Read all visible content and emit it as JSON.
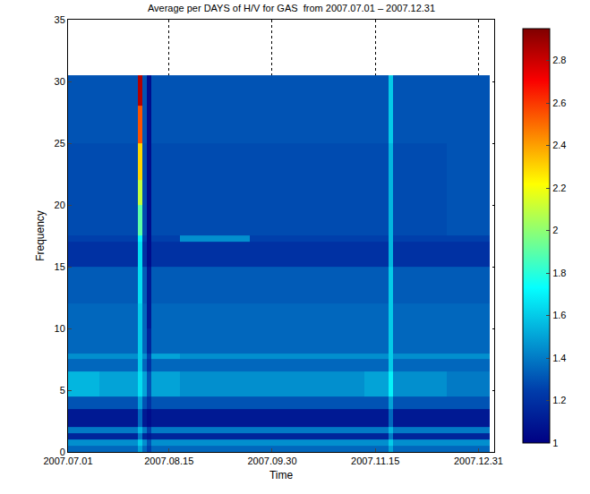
{
  "chart_data": {
    "type": "heatmap",
    "title": "Average per DAYS of H/V for GAS  from 2007.07.01 – 2007.12.31",
    "xlabel": "Time",
    "ylabel": "Frequency",
    "color": "Jet",
    "grid": true,
    "xlim": [
      "2007-07-01",
      "2008-01-07"
    ],
    "xticks": [
      {
        "value": "2007-07-01",
        "label": "2007.07.01"
      },
      {
        "value": "2007-08-15",
        "label": "2007.08.15"
      },
      {
        "value": "2007-09-30",
        "label": "2007.09.30"
      },
      {
        "value": "2007-11-15",
        "label": "2007.11.15"
      },
      {
        "value": "2007-12-31",
        "label": "2007.12.31"
      }
    ],
    "ylim": [
      0,
      35
    ],
    "yticks": [
      0,
      5,
      10,
      15,
      20,
      25,
      30,
      35
    ],
    "colorbar_range": [
      1,
      2.95
    ],
    "colorbar_ticks": [
      1,
      1.2,
      1.4,
      1.6,
      1.8,
      2,
      2.2,
      2.4,
      2.6,
      2.8
    ],
    "x_edges": [
      "2007-07-01",
      "2007-07-15",
      "2007-08-01",
      "2007-08-03",
      "2007-08-05",
      "2007-08-07",
      "2007-08-20",
      "2007-09-20",
      "2007-10-15",
      "2007-11-10",
      "2007-11-21",
      "2007-11-23",
      "2007-12-17",
      "2008-01-05"
    ],
    "y_edges": [
      0,
      0.5,
      1,
      1.5,
      2,
      3.5,
      4.5,
      6.5,
      7.5,
      8,
      10,
      12,
      15,
      17,
      17.5,
      20,
      22,
      25,
      28,
      30.5
    ],
    "z": [
      [
        1.35,
        1.35,
        1.5,
        1.35,
        1.25,
        1.35,
        1.35,
        1.35,
        1.35,
        1.35,
        1.5,
        1.35,
        1.35
      ],
      [
        1.45,
        1.45,
        1.6,
        1.45,
        1.3,
        1.45,
        1.45,
        1.45,
        1.45,
        1.45,
        1.6,
        1.45,
        1.45
      ],
      [
        1.15,
        1.15,
        1.4,
        1.15,
        1.1,
        1.15,
        1.15,
        1.15,
        1.15,
        1.15,
        1.4,
        1.15,
        1.15
      ],
      [
        1.4,
        1.4,
        1.55,
        1.4,
        1.25,
        1.4,
        1.4,
        1.4,
        1.4,
        1.4,
        1.55,
        1.4,
        1.4
      ],
      [
        1.1,
        1.1,
        1.35,
        1.1,
        1.05,
        1.1,
        1.1,
        1.1,
        1.1,
        1.1,
        1.35,
        1.1,
        1.1
      ],
      [
        1.3,
        1.3,
        1.5,
        1.3,
        1.2,
        1.3,
        1.3,
        1.3,
        1.3,
        1.3,
        1.5,
        1.3,
        1.3
      ],
      [
        1.55,
        1.5,
        1.65,
        1.5,
        1.3,
        1.5,
        1.45,
        1.45,
        1.45,
        1.5,
        1.7,
        1.45,
        1.4
      ],
      [
        1.35,
        1.35,
        1.6,
        1.35,
        1.2,
        1.35,
        1.35,
        1.35,
        1.35,
        1.35,
        1.6,
        1.35,
        1.35
      ],
      [
        1.45,
        1.45,
        1.6,
        1.45,
        1.25,
        1.5,
        1.45,
        1.45,
        1.45,
        1.45,
        1.6,
        1.45,
        1.45
      ],
      [
        1.35,
        1.35,
        1.6,
        1.35,
        1.15,
        1.35,
        1.35,
        1.35,
        1.35,
        1.35,
        1.6,
        1.35,
        1.35
      ],
      [
        1.35,
        1.35,
        1.6,
        1.35,
        1.1,
        1.35,
        1.35,
        1.35,
        1.35,
        1.35,
        1.6,
        1.35,
        1.35
      ],
      [
        1.32,
        1.32,
        1.65,
        1.32,
        1.1,
        1.32,
        1.32,
        1.32,
        1.32,
        1.32,
        1.6,
        1.32,
        1.32
      ],
      [
        1.2,
        1.2,
        1.65,
        1.2,
        1.05,
        1.2,
        1.2,
        1.2,
        1.2,
        1.2,
        1.55,
        1.2,
        1.2
      ],
      [
        1.25,
        1.25,
        1.7,
        1.25,
        1.05,
        1.25,
        1.45,
        1.25,
        1.25,
        1.25,
        1.55,
        1.25,
        1.25
      ],
      [
        1.28,
        1.28,
        1.9,
        1.28,
        1.05,
        1.28,
        1.28,
        1.28,
        1.28,
        1.28,
        1.55,
        1.28,
        1.3
      ],
      [
        1.28,
        1.28,
        2.1,
        1.28,
        1.05,
        1.28,
        1.28,
        1.28,
        1.28,
        1.28,
        1.55,
        1.28,
        1.3
      ],
      [
        1.28,
        1.28,
        2.3,
        1.28,
        1.05,
        1.28,
        1.28,
        1.28,
        1.28,
        1.28,
        1.55,
        1.28,
        1.3
      ],
      [
        1.3,
        1.3,
        2.55,
        1.3,
        1.05,
        1.3,
        1.3,
        1.3,
        1.3,
        1.3,
        1.6,
        1.3,
        1.3
      ],
      [
        1.3,
        1.3,
        2.85,
        1.3,
        1.05,
        1.3,
        1.3,
        1.3,
        1.3,
        1.3,
        1.6,
        1.3,
        1.3
      ]
    ]
  }
}
